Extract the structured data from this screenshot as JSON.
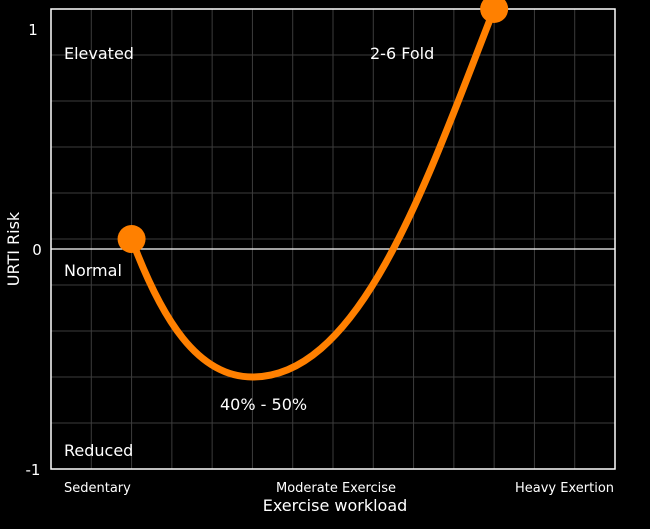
{
  "chart_data": {
    "type": "line",
    "title": "",
    "xlabel": "Exercise workload",
    "ylabel": "URTI Risk",
    "ylim": [
      -1,
      1
    ],
    "yticks": [
      "1",
      "0",
      "-1"
    ],
    "x_categories": [
      "Sedentary",
      "Moderate Exercise",
      "Heavy Exertion"
    ],
    "grid": true,
    "series": [
      {
        "color": "#ff8000",
        "points": [
          {
            "x": 0.2,
            "y": 0.0
          },
          {
            "x": 0.5,
            "y": -0.6
          },
          {
            "x": 1.1,
            "y": 1.0
          }
        ],
        "endpoint_markers": true
      }
    ],
    "annotations": {
      "elevated": "Elevated",
      "normal": "Normal",
      "reduced": "Reduced",
      "fold": "2-6 Fold",
      "minimum": "40% - 50%"
    }
  }
}
